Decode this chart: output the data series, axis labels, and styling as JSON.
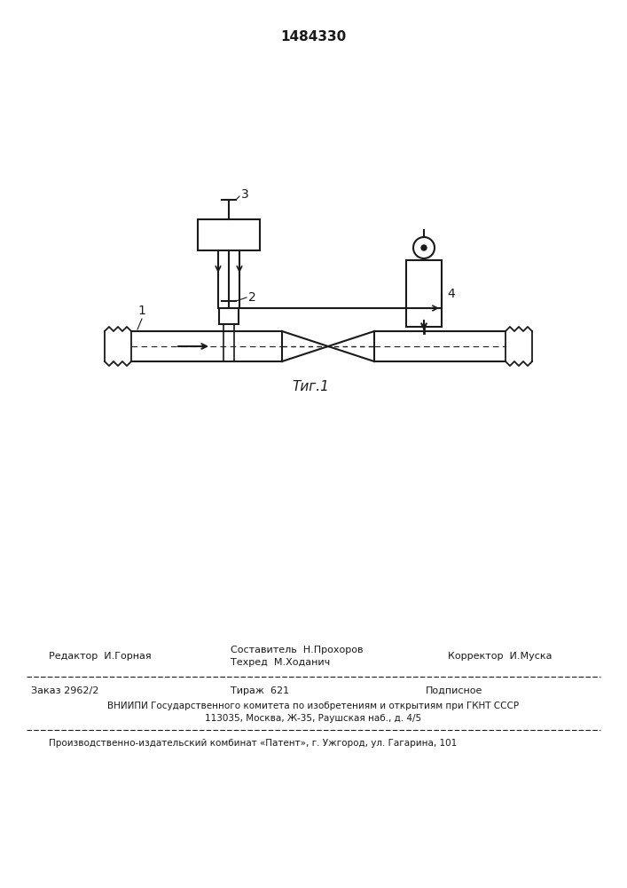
{
  "patent_number": "1484330",
  "fig_label": "Τиг.1",
  "bg_color": "#ffffff",
  "line_color": "#1a1a1a",
  "editor_line": "Редактор  И.Горная",
  "compiler_line1": "Составитель  Н.Прохоров",
  "compiler_line2": "Техред  М.Ходанич",
  "corrector_line": "Корректор  И.Муска",
  "order_line": "Заказ 2962/2",
  "print_line": "Тираж  621",
  "subscription_line": "Подписное",
  "vniiipi_line1": "ВНИИПИ Государственного комитета по изобретениям и открытиям при ГКНТ СССР",
  "vniiipi_line2": "113035, Москва, Ж-35, Раушская наб., д. 4/5",
  "publisher_line": "Производственно-издательский комбинат «Патент», г. Ужгород, ул. Гагарина, 101"
}
